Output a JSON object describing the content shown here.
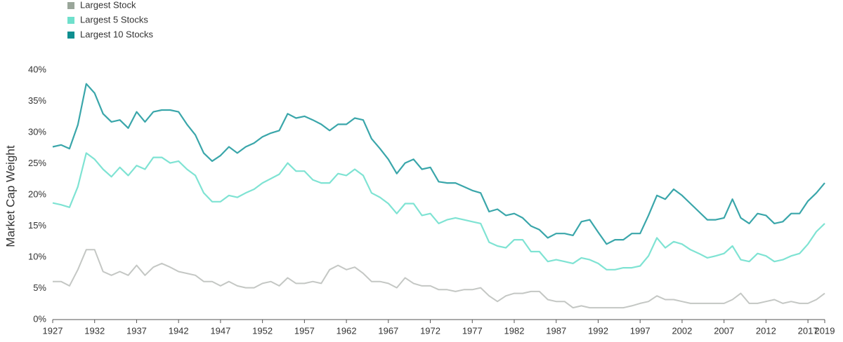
{
  "chart_data": {
    "type": "line",
    "y_label": "Market Cap Weight",
    "x": [
      1927,
      1928,
      1929,
      1930,
      1931,
      1932,
      1933,
      1934,
      1935,
      1936,
      1937,
      1938,
      1939,
      1940,
      1941,
      1942,
      1943,
      1944,
      1945,
      1946,
      1947,
      1948,
      1949,
      1950,
      1951,
      1952,
      1953,
      1954,
      1955,
      1956,
      1957,
      1958,
      1959,
      1960,
      1961,
      1962,
      1963,
      1964,
      1965,
      1966,
      1967,
      1968,
      1969,
      1970,
      1971,
      1972,
      1973,
      1974,
      1975,
      1976,
      1977,
      1978,
      1979,
      1980,
      1981,
      1982,
      1983,
      1984,
      1985,
      1986,
      1987,
      1988,
      1989,
      1990,
      1991,
      1992,
      1993,
      1994,
      1995,
      1996,
      1997,
      1998,
      1999,
      2000,
      2001,
      2002,
      2003,
      2004,
      2005,
      2006,
      2007,
      2008,
      2009,
      2010,
      2011,
      2012,
      2013,
      2014,
      2015,
      2016,
      2017,
      2018,
      2019
    ],
    "series": [
      {
        "name": "Largest Stock",
        "color": "#c4c7c4",
        "legend_color": "#9aa69a",
        "values": [
          6.1,
          6.1,
          5.4,
          8.0,
          11.2,
          11.2,
          7.7,
          7.1,
          7.7,
          7.1,
          8.7,
          7.1,
          8.4,
          9.0,
          8.4,
          7.7,
          7.4,
          7.1,
          6.1,
          6.1,
          5.4,
          6.1,
          5.4,
          5.1,
          5.1,
          5.8,
          6.1,
          5.4,
          6.7,
          5.8,
          5.8,
          6.1,
          5.8,
          8.0,
          8.7,
          8.0,
          8.4,
          7.4,
          6.1,
          6.1,
          5.8,
          5.1,
          6.7,
          5.8,
          5.4,
          5.4,
          4.8,
          4.8,
          4.5,
          4.8,
          4.8,
          5.1,
          3.8,
          2.9,
          3.8,
          4.2,
          4.2,
          4.5,
          4.5,
          3.2,
          2.9,
          2.9,
          1.9,
          2.2,
          1.9,
          1.9,
          1.9,
          1.9,
          1.9,
          2.2,
          2.6,
          2.9,
          3.8,
          3.2,
          3.2,
          2.9,
          2.6,
          2.6,
          2.6,
          2.6,
          2.6,
          3.2,
          4.2,
          2.6,
          2.6,
          2.9,
          3.2,
          2.6,
          2.9,
          2.6,
          2.6,
          3.2,
          4.2
        ]
      },
      {
        "name": "Largest 5 Stocks",
        "color": "#7fe3d3",
        "legend_color": "#6fe0cc",
        "values": [
          18.7,
          18.4,
          18.0,
          21.3,
          26.7,
          25.7,
          24.1,
          22.9,
          24.4,
          23.1,
          24.7,
          24.1,
          26.0,
          26.0,
          25.1,
          25.4,
          24.1,
          23.1,
          20.3,
          18.9,
          18.9,
          19.9,
          19.6,
          20.3,
          20.9,
          21.9,
          22.6,
          23.3,
          25.1,
          23.8,
          23.8,
          22.4,
          21.9,
          21.9,
          23.4,
          23.1,
          24.1,
          23.1,
          20.3,
          19.6,
          18.6,
          17.0,
          18.6,
          18.6,
          16.7,
          17.0,
          15.4,
          16.0,
          16.3,
          16.0,
          15.7,
          15.4,
          12.4,
          11.8,
          11.5,
          12.8,
          12.8,
          10.9,
          10.9,
          9.3,
          9.6,
          9.3,
          9.0,
          9.9,
          9.6,
          9.0,
          8.0,
          8.0,
          8.3,
          8.3,
          8.6,
          10.2,
          13.1,
          11.5,
          12.5,
          12.1,
          11.2,
          10.6,
          9.9,
          10.2,
          10.6,
          11.8,
          9.6,
          9.3,
          10.6,
          10.2,
          9.3,
          9.6,
          10.2,
          10.6,
          12.1,
          14.1,
          15.4
        ]
      },
      {
        "name": "Largest 10 Stocks",
        "color": "#3aa6aa",
        "legend_color": "#0e8f90",
        "values": [
          27.7,
          28.0,
          27.4,
          31.2,
          37.8,
          36.3,
          33.0,
          31.7,
          32.0,
          30.7,
          33.3,
          31.7,
          33.3,
          33.6,
          33.6,
          33.3,
          31.3,
          29.6,
          26.7,
          25.4,
          26.3,
          27.7,
          26.7,
          27.7,
          28.3,
          29.3,
          29.9,
          30.3,
          33.0,
          32.3,
          32.6,
          32.0,
          31.3,
          30.3,
          31.3,
          31.3,
          32.3,
          32.0,
          29.0,
          27.4,
          25.7,
          23.4,
          25.1,
          25.7,
          24.1,
          24.4,
          22.1,
          21.9,
          21.9,
          21.3,
          20.7,
          20.3,
          17.3,
          17.7,
          16.7,
          17.0,
          16.3,
          15.0,
          14.4,
          13.1,
          13.8,
          13.8,
          13.5,
          15.7,
          16.0,
          14.0,
          12.1,
          12.8,
          12.8,
          13.8,
          13.8,
          16.7,
          19.9,
          19.3,
          20.9,
          19.9,
          18.6,
          17.3,
          16.0,
          16.0,
          16.3,
          19.3,
          16.3,
          15.4,
          17.0,
          16.7,
          15.4,
          15.7,
          17.0,
          17.0,
          19.0,
          20.3,
          21.9
        ]
      }
    ],
    "xlim": [
      1927,
      2019
    ],
    "xticks": [
      1927,
      1932,
      1937,
      1942,
      1947,
      1952,
      1957,
      1962,
      1967,
      1972,
      1977,
      1982,
      1987,
      1992,
      1997,
      2002,
      2007,
      2012,
      2017,
      2019
    ],
    "ylim": [
      0,
      40
    ],
    "yticks": [
      {
        "value": 0,
        "label": "0%"
      },
      {
        "value": 5,
        "label": "5%"
      },
      {
        "value": 10,
        "label": "10%"
      },
      {
        "value": 15,
        "label": "15%"
      },
      {
        "value": 20,
        "label": "20%"
      },
      {
        "value": 25,
        "label": "25%"
      },
      {
        "value": 30,
        "label": "30%"
      },
      {
        "value": 35,
        "label": "35%"
      },
      {
        "value": 40,
        "label": "40%"
      }
    ],
    "legend_position": "top-left"
  }
}
